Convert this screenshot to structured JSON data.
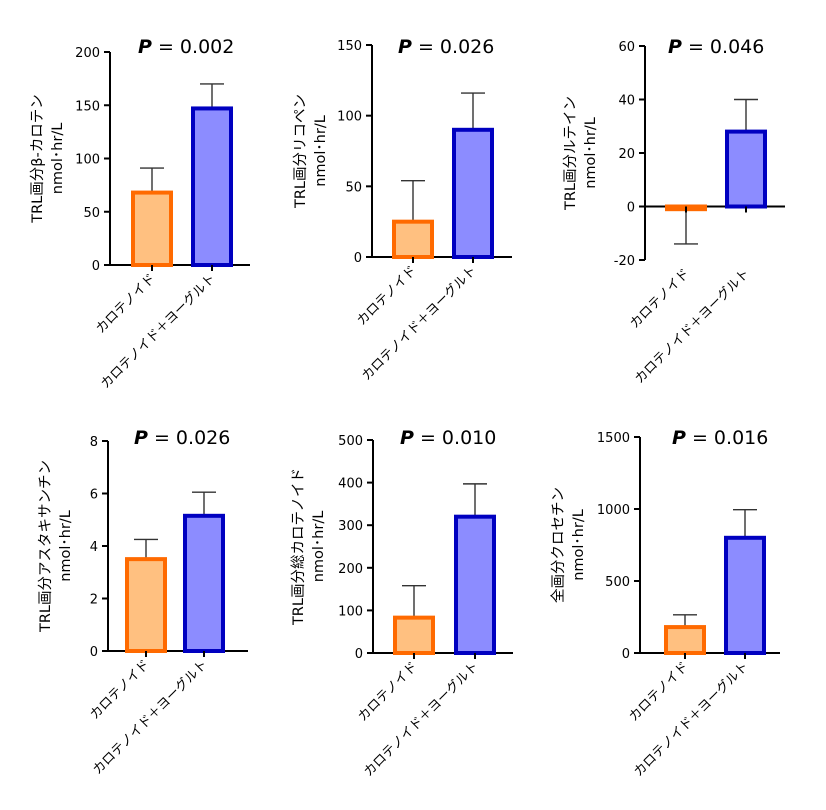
{
  "colors": {
    "carotenoid_fill": "#FFC080",
    "carotenoid_edge": "#FF6A00",
    "yogurt_fill": "#8C8CFF",
    "yogurt_edge": "#0000C0"
  },
  "chart_data": [
    {
      "type": "bar",
      "categories": [
        "カロテノイド",
        "カロテノイド＋ヨーグルト"
      ],
      "values": [
        68,
        147
      ],
      "errors": [
        23,
        23
      ],
      "ylabel_lines": [
        "TRL画分β-カロテン",
        "nmol･hr/L"
      ],
      "ylim": [
        0,
        200
      ],
      "yticks": [
        0,
        50,
        100,
        150,
        200
      ],
      "p_label": "P",
      "p_value": "= 0.002"
    },
    {
      "type": "bar",
      "categories": [
        "カロテノイド",
        "カロテノイド＋ヨーグルト"
      ],
      "values": [
        25,
        90
      ],
      "errors": [
        29,
        26
      ],
      "ylabel_lines": [
        "TRL画分リコペン",
        "nmol･hr/L"
      ],
      "ylim": [
        0,
        150
      ],
      "yticks": [
        0,
        50,
        100,
        150
      ],
      "p_label": "P",
      "p_value": "= 0.026"
    },
    {
      "type": "bar",
      "categories": [
        "カロテノイド",
        "カロテノイド＋ヨーグルト"
      ],
      "values": [
        -1,
        28
      ],
      "errors": [
        13,
        12
      ],
      "error_dir": [
        -1,
        1
      ],
      "ylabel_lines": [
        "TRL画分ルテイン",
        "nmol･hr/L"
      ],
      "ylim": [
        -20,
        60
      ],
      "yticks": [
        -20,
        0,
        20,
        40,
        60
      ],
      "p_label": "P",
      "p_value": "= 0.046"
    },
    {
      "type": "bar",
      "categories": [
        "カロテノイド",
        "カロテノイド＋ヨーグルト"
      ],
      "values": [
        3.5,
        5.15
      ],
      "errors": [
        0.75,
        0.9
      ],
      "ylabel_lines": [
        "TRL画分アスタキサンチン",
        "nmol･hr/L"
      ],
      "ylim": [
        0,
        8
      ],
      "yticks": [
        0,
        2,
        4,
        6,
        8
      ],
      "p_label": "P",
      "p_value": "= 0.026"
    },
    {
      "type": "bar",
      "categories": [
        "カロテノイド",
        "カロテノイド＋ヨーグルト"
      ],
      "values": [
        83,
        320
      ],
      "errors": [
        75,
        77
      ],
      "ylabel_lines": [
        "TRL画分総カロテノイド",
        "nmol･hr/L"
      ],
      "ylim": [
        0,
        500
      ],
      "yticks": [
        0,
        100,
        200,
        300,
        400,
        500
      ],
      "p_label": "P",
      "p_value": "= 0.010"
    },
    {
      "type": "bar",
      "categories": [
        "カロテノイド",
        "カロテノイド＋ヨーグルト"
      ],
      "values": [
        180,
        800
      ],
      "errors": [
        85,
        195
      ],
      "ylabel_lines": [
        "全画分クロセチン",
        "nmol･hr/L"
      ],
      "ylim": [
        0,
        1500
      ],
      "yticks": [
        0,
        500,
        1000,
        1500
      ],
      "p_label": "P",
      "p_value": "= 0.016"
    }
  ]
}
